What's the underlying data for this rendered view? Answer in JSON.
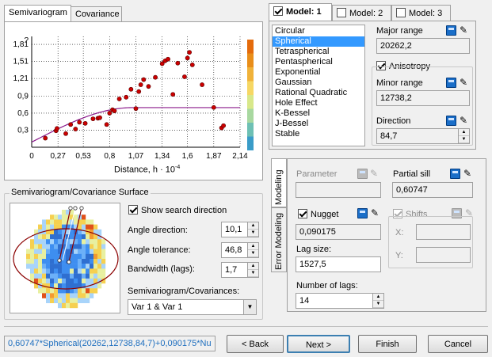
{
  "tabs_left": {
    "semivariogram": "Semivariogram",
    "covariance": "Covariance"
  },
  "chart": {
    "xlabel": "Distance, h · 10",
    "xlabel_exp": "-4",
    "x_ticks": [
      "0",
      "0,27",
      "0,53",
      "0,8",
      "1,07",
      "1,34",
      "1,6",
      "1,87",
      "2,14"
    ],
    "y_ticks": [
      "0,3",
      "0,6",
      "0,9",
      "1,21",
      "1,51",
      "1,81"
    ],
    "y_top_label": "?",
    "colors": {
      "points": "#cc0000",
      "model": "#8b1a8b",
      "avg": "#3355aa"
    }
  },
  "chart_data": {
    "type": "scatter",
    "xlabel": "Distance, h · 10-4",
    "xlim": [
      0,
      2.14
    ],
    "ylim": [
      0,
      1.95
    ],
    "points": [
      [
        0.14,
        0.16
      ],
      [
        0.25,
        0.29
      ],
      [
        0.26,
        0.33
      ],
      [
        0.35,
        0.24
      ],
      [
        0.4,
        0.4
      ],
      [
        0.45,
        0.32
      ],
      [
        0.49,
        0.44
      ],
      [
        0.55,
        0.42
      ],
      [
        0.63,
        0.5
      ],
      [
        0.68,
        0.51
      ],
      [
        0.7,
        0.52
      ],
      [
        0.77,
        0.4
      ],
      [
        0.8,
        0.6
      ],
      [
        0.83,
        0.66
      ],
      [
        0.85,
        0.64
      ],
      [
        0.9,
        0.85
      ],
      [
        0.97,
        0.88
      ],
      [
        1.02,
        1.02
      ],
      [
        1.07,
        0.68
      ],
      [
        1.1,
        0.98
      ],
      [
        1.12,
        1.1
      ],
      [
        1.15,
        1.19
      ],
      [
        1.2,
        1.07
      ],
      [
        1.27,
        1.23
      ],
      [
        1.34,
        1.47
      ],
      [
        1.37,
        1.52
      ],
      [
        1.4,
        1.55
      ],
      [
        1.45,
        0.93
      ],
      [
        1.5,
        1.48
      ],
      [
        1.57,
        1.24
      ],
      [
        1.6,
        1.57
      ],
      [
        1.62,
        1.67
      ],
      [
        1.65,
        1.45
      ],
      [
        1.75,
        1.1
      ],
      [
        1.87,
        0.7
      ],
      [
        1.95,
        0.34
      ],
      [
        1.97,
        0.38
      ]
    ],
    "model_line": "spherical"
  },
  "surface": {
    "title": "Semivariogram/Covariance Surface",
    "show_search": "Show search direction",
    "angle_dir_label": "Angle direction:",
    "angle_dir": "10,1",
    "angle_tol_label": "Angle tolerance:",
    "angle_tol": "46,8",
    "bandwidth_label": "Bandwidth (lags):",
    "bandwidth": "1,7",
    "semivar_label": "Semivariogram/Covariances:",
    "semivar_value": "Var 1 & Var 1"
  },
  "model_tabs": {
    "m1": "Model:",
    "m1n": "1",
    "m2": "Model:",
    "m2n": "2",
    "m3": "Model:",
    "m3n": "3"
  },
  "models": [
    "Circular",
    "Spherical",
    "Tetraspherical",
    "Pentaspherical",
    "Exponential",
    "Gaussian",
    "Rational Quadratic",
    "Hole Effect",
    "K-Bessel",
    "J-Bessel",
    "Stable"
  ],
  "selected_model": "Spherical",
  "major_range_label": "Major range",
  "major_range": "20262,2",
  "anisotropy": "Anisotropy",
  "minor_range_label": "Minor range",
  "minor_range": "12738,2",
  "direction_label": "Direction",
  "direction": "84,7",
  "vtabs": {
    "modeling": "Modeling",
    "error": "Error Modeling"
  },
  "parameter_label": "Parameter",
  "partial_sill_label": "Partial sill",
  "partial_sill": "0,60747",
  "nugget": "Nugget",
  "nugget_value": "0,090175",
  "shifts": "Shifts",
  "x_label": "X:",
  "y_label": "Y:",
  "lag_size_label": "Lag size:",
  "lag_size": "1527,5",
  "num_lags_label": "Number of lags:",
  "num_lags": "14",
  "formula": "0,60747*Spherical(20262,12738,84,7)+0,090175*Nu",
  "buttons": {
    "back": "< Back",
    "next": "Next >",
    "finish": "Finish",
    "cancel": "Cancel"
  }
}
